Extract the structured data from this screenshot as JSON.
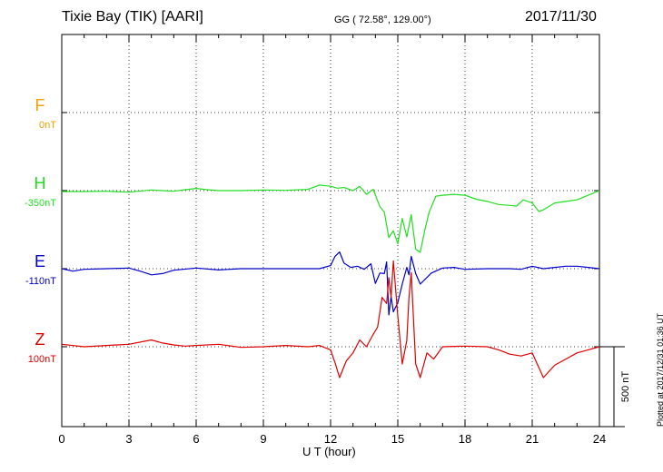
{
  "header": {
    "title": "Tixie Bay (TIK)  [AARI]",
    "coords": "GG ( 72.58°, 129.00°)",
    "date": "2017/11/30"
  },
  "footnote": "Plotted at 2017/12/31 01:36 UT",
  "chart_data": {
    "type": "line",
    "xlabel": "U T (hour)",
    "xlim": [
      0,
      24
    ],
    "xticks": [
      "0",
      "3",
      "6",
      "9",
      "12",
      "15",
      "18",
      "21",
      "24"
    ],
    "scale_bar": "500 nT",
    "grid": true,
    "series": [
      {
        "name": "F",
        "offset_label": "0nT",
        "color": "#f5a000",
        "x": [],
        "y": []
      },
      {
        "name": "H",
        "offset_label": "-350nT",
        "color": "#22dd22",
        "x": [
          0,
          1,
          2,
          3,
          4,
          4.5,
          5,
          5.5,
          6,
          6.5,
          7,
          8,
          9,
          10,
          11,
          11.5,
          12,
          12.3,
          12.6,
          13,
          13.3,
          13.6,
          13.9,
          14.2,
          14.4,
          14.6,
          14.8,
          15.0,
          15.2,
          15.4,
          15.6,
          15.8,
          16.0,
          16.2,
          16.4,
          16.7,
          17,
          17.5,
          18,
          18.5,
          19,
          19.5,
          20,
          20.3,
          20.6,
          21,
          21.3,
          21.5,
          22,
          22.5,
          23,
          23.5,
          24
        ],
        "y": [
          -3,
          -3,
          -2,
          -5,
          2,
          0,
          -2,
          3,
          7,
          3,
          0,
          0,
          2,
          1,
          4,
          18,
          14,
          8,
          10,
          0,
          14,
          -12,
          4,
          -52,
          -70,
          -152,
          -130,
          -172,
          -90,
          -150,
          -78,
          -190,
          -200,
          -130,
          -70,
          -18,
          -15,
          -12,
          -15,
          -28,
          -35,
          -45,
          -48,
          -50,
          -30,
          -40,
          -68,
          -62,
          -40,
          -35,
          -30,
          -15,
          0
        ]
      },
      {
        "name": "E",
        "offset_label": "-110nT",
        "color": "#0000cc",
        "x": [
          0,
          0.5,
          1,
          2,
          3,
          3.5,
          4,
          4.5,
          5,
          6,
          7,
          8,
          9,
          10,
          11,
          11.5,
          12,
          12.2,
          12.4,
          12.6,
          12.9,
          13.2,
          13.5,
          13.8,
          14.0,
          14.2,
          14.4,
          14.5,
          14.6,
          14.7,
          14.8,
          15.0,
          15.2,
          15.4,
          15.5,
          15.6,
          15.8,
          16.0,
          16.5,
          17,
          17.5,
          18,
          19,
          20,
          20.5,
          21,
          21.5,
          22,
          22.5,
          23,
          23.5,
          24
        ],
        "y": [
          0,
          -8,
          -2,
          0,
          2,
          -8,
          -20,
          -16,
          -5,
          2,
          -4,
          0,
          0,
          0,
          0,
          0,
          10,
          40,
          54,
          18,
          4,
          8,
          -2,
          16,
          -48,
          -14,
          -16,
          22,
          -150,
          -90,
          -140,
          -110,
          -50,
          4,
          -20,
          40,
          -16,
          -50,
          -14,
          2,
          4,
          -2,
          0,
          0,
          -2,
          8,
          0,
          4,
          8,
          8,
          4,
          0
        ]
      },
      {
        "name": "Z",
        "offset_label": "100nT",
        "color": "#dd0000",
        "x": [
          0,
          1,
          2,
          3,
          4,
          4.5,
          5,
          5.5,
          6,
          7,
          8,
          9,
          10,
          11,
          11.5,
          12,
          12.2,
          12.4,
          12.7,
          13.0,
          13.3,
          13.6,
          13.9,
          14.1,
          14.3,
          14.5,
          14.6,
          14.7,
          14.8,
          15.0,
          15.2,
          15.4,
          15.5,
          15.6,
          15.8,
          16.0,
          16.3,
          16.6,
          17,
          18,
          19,
          19.5,
          20,
          20.5,
          21,
          21.5,
          22,
          22.5,
          23,
          23.5,
          24
        ],
        "y": [
          8,
          0,
          4,
          8,
          22,
          12,
          6,
          2,
          4,
          8,
          -2,
          0,
          4,
          0,
          4,
          -10,
          -52,
          -100,
          -46,
          -20,
          22,
          0,
          40,
          64,
          160,
          140,
          224,
          160,
          278,
          100,
          -56,
          20,
          160,
          240,
          -56,
          -100,
          -20,
          -40,
          0,
          2,
          0,
          -10,
          -24,
          -30,
          -20,
          -100,
          -60,
          -40,
          -20,
          -10,
          0
        ]
      }
    ]
  }
}
